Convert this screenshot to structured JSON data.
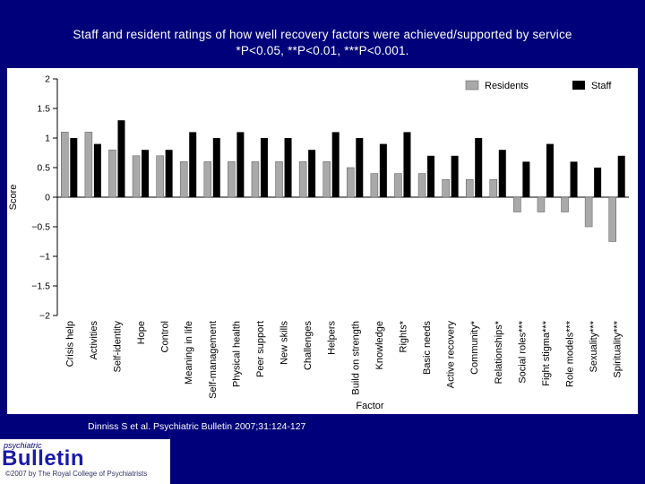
{
  "slide": {
    "title_line1": "Staff and resident ratings of how well recovery factors were achieved/supported by service",
    "title_line2": "*P<0.05, **P<0.01, ***P<0.001."
  },
  "citation": "Dinniss S et al. Psychiatric Bulletin 2007;31:124-127",
  "logo": {
    "top_text": "psychiatric",
    "main_text": "Bulletin",
    "copyright": "©2007 by The Royal College of Psychiatrists"
  },
  "colors": {
    "background": "#00007a",
    "residents": "#a9a9a9",
    "staff": "#000000"
  },
  "chart_data": {
    "type": "bar",
    "title": "",
    "xlabel": "Factor",
    "ylabel": "Score",
    "ylim": [
      -2,
      2
    ],
    "yticks": [
      2,
      1.5,
      1,
      0.5,
      0,
      -0.5,
      -1,
      -1.5,
      -2
    ],
    "ytick_labels": [
      "2",
      "1.5",
      "1",
      "0.5",
      "0",
      "−0.5",
      "−1",
      "−1.5",
      "−2"
    ],
    "grid": false,
    "legend_position": "top-right",
    "categories": [
      "Crisis help",
      "Activities",
      "Self-identity",
      "Hope",
      "Control",
      "Meaning in life",
      "Self-management",
      "Physical health",
      "Peer support",
      "New skills",
      "Challenges",
      "Helpers",
      "Build on strength",
      "Knowledge",
      "Rights*",
      "Basic needs",
      "Active recovery",
      "Community*",
      "Relationships*",
      "Social roles***",
      "Fight stigma***",
      "Role models***",
      "Sexuality***",
      "Spirituality***"
    ],
    "series": [
      {
        "name": "Residents",
        "values": [
          1.1,
          1.1,
          0.8,
          0.7,
          0.7,
          0.6,
          0.6,
          0.6,
          0.6,
          0.6,
          0.6,
          0.6,
          0.5,
          0.4,
          0.4,
          0.4,
          0.3,
          0.3,
          0.3,
          -0.25,
          -0.25,
          -0.25,
          -0.5,
          -0.75
        ]
      },
      {
        "name": "Staff",
        "values": [
          1.0,
          0.9,
          1.3,
          0.8,
          0.8,
          1.1,
          1.0,
          1.1,
          1.0,
          1.0,
          0.8,
          1.1,
          1.0,
          0.9,
          1.1,
          0.7,
          0.7,
          1.0,
          0.8,
          0.6,
          0.9,
          0.6,
          0.5,
          0.7
        ]
      }
    ]
  }
}
